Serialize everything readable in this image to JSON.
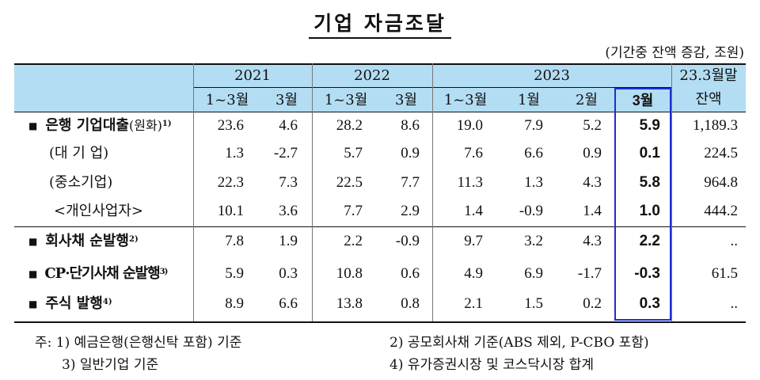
{
  "title": "기업 자금조달",
  "unit": "(기간중 잔액 증감, 조원)",
  "header": {
    "years": [
      "2021",
      "2022",
      "2023"
    ],
    "subcols": [
      "1~3월",
      "3월",
      "1~3월",
      "3월",
      "1~3월",
      "1월",
      "2월",
      "3월"
    ],
    "last_col_line1": "23.3월말",
    "last_col_line2": "잔액"
  },
  "rows": [
    {
      "label": "은행 기업대출",
      "label_suffix": "(원화)",
      "sup": "1)",
      "bullet": "■",
      "values": [
        "23.6",
        "4.6",
        "28.2",
        "8.6",
        "19.0",
        "7.9",
        "5.2",
        "5.9",
        "1,189.3"
      ]
    },
    {
      "label": "(대 기 업)",
      "values": [
        "1.3",
        "-2.7",
        "5.7",
        "0.9",
        "7.6",
        "6.6",
        "0.9",
        "0.1",
        "224.5"
      ]
    },
    {
      "label": "(중소기업)",
      "values": [
        "22.3",
        "7.3",
        "22.5",
        "7.7",
        "11.3",
        "1.3",
        "4.3",
        "5.8",
        "964.8"
      ]
    },
    {
      "label": "<개인사업자>",
      "values": [
        "10.1",
        "3.6",
        "7.7",
        "2.9",
        "1.4",
        "-0.9",
        "1.4",
        "1.0",
        "444.2"
      ]
    },
    {
      "label": "회사채 순발행",
      "sup": "2)",
      "bullet": "■",
      "values": [
        "7.8",
        "1.9",
        "2.2",
        "-0.9",
        "9.7",
        "3.2",
        "4.3",
        "2.2",
        ".."
      ]
    },
    {
      "label": "CP·단기사채 순발행",
      "sup": "3)",
      "bullet": "■",
      "values": [
        "5.9",
        "0.3",
        "10.8",
        "0.6",
        "4.9",
        "6.9",
        "-1.7",
        "-0.3",
        "61.5"
      ]
    },
    {
      "label": "주식 발행",
      "sup": "4)",
      "bullet": "■",
      "values": [
        "8.9",
        "6.6",
        "13.8",
        "0.8",
        "2.1",
        "1.5",
        "0.2",
        "0.3",
        ".."
      ]
    }
  ],
  "notes": {
    "n1": "주: 1) 예금은행(은행신탁 포함) 기준",
    "n2": "2) 공모회사채 기준(ABS 제외, P-CBO 포함)",
    "n3": "3) 일반기업 기준",
    "n4": "4) 유가증권시장 및 코스닥시장 합계"
  },
  "colors": {
    "header_bg": "#b3ddf3",
    "highlight_box": "#1c2fd0"
  }
}
